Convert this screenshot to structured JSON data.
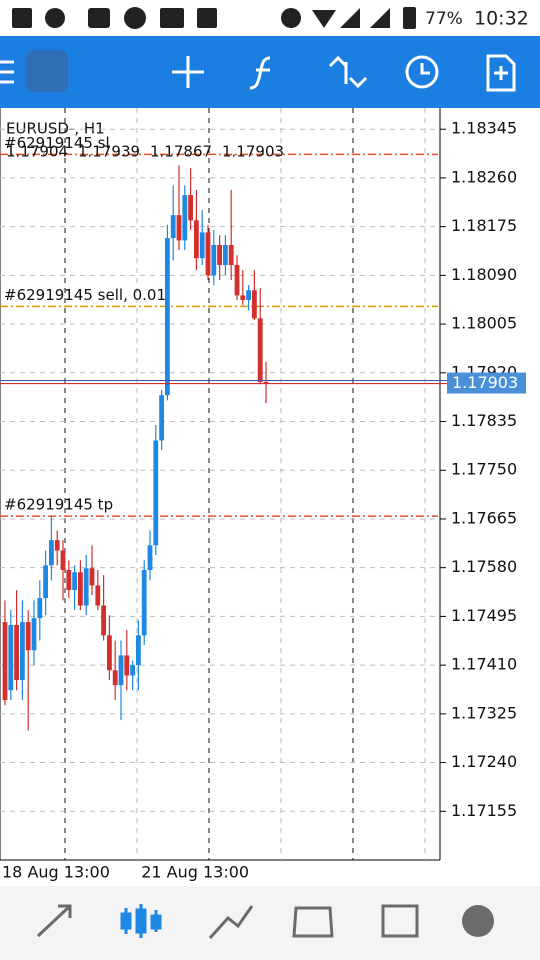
{
  "status_bar": {
    "battery": "77%",
    "time": "10:32"
  },
  "chart_data": {
    "type": "candlestick",
    "title": "EURUSD-, H1",
    "categories": [
      "18 Aug 13:00",
      null,
      null,
      null,
      null,
      null,
      null,
      null,
      null,
      null,
      null,
      null,
      null,
      null,
      null,
      null,
      null,
      null,
      null,
      null,
      null,
      null,
      null,
      null,
      "21 Aug 13:00",
      null,
      null,
      null,
      null,
      null,
      null,
      null,
      null,
      null,
      null,
      null,
      null,
      null,
      null,
      null,
      null,
      null,
      null,
      null,
      null,
      null
    ],
    "open": [
      1.17485,
      1.17366,
      1.1748,
      1.17384,
      1.17485,
      1.17436,
      1.17492,
      1.17527,
      1.17584,
      1.17628,
      1.1761,
      1.17576,
      1.17541,
      1.17572,
      1.17514,
      1.17579,
      1.17549,
      1.17514,
      1.17462,
      1.17401,
      1.17375,
      1.17427,
      1.17392,
      1.1741,
      1.17462,
      1.17576,
      1.17619,
      1.17802,
      1.17881,
      1.18155,
      1.18195,
      1.18151,
      1.1823,
      1.18186,
      1.1812,
      1.18165,
      1.1809,
      1.18143,
      1.18108,
      1.18143,
      1.18108,
      1.18055,
      1.18047,
      1.18064,
      1.18015,
      1.17904
    ],
    "high": [
      1.17523,
      1.17506,
      1.17541,
      1.17523,
      1.17506,
      1.17523,
      1.17558,
      1.1761,
      1.17671,
      1.17645,
      1.17628,
      1.17593,
      1.17584,
      1.17593,
      1.17602,
      1.17619,
      1.17576,
      1.17567,
      1.17497,
      1.17453,
      1.17453,
      1.17471,
      1.17418,
      1.17488,
      1.17593,
      1.17645,
      1.17829,
      1.1789,
      1.18178,
      1.18247,
      1.18282,
      1.18247,
      1.18277,
      1.18239,
      1.18204,
      1.18178,
      1.18169,
      1.1816,
      1.1816,
      1.18239,
      1.18125,
      1.18099,
      1.18073,
      1.18099,
      1.18068,
      1.17939
    ],
    "low": [
      1.1734,
      1.17349,
      1.17366,
      1.17349,
      1.17296,
      1.1741,
      1.17453,
      1.17497,
      1.17558,
      1.17584,
      1.17523,
      1.17527,
      1.17506,
      1.17506,
      1.17497,
      1.17532,
      1.17506,
      1.17453,
      1.17384,
      1.17349,
      1.17314,
      1.17366,
      1.17366,
      1.17366,
      1.17445,
      1.17558,
      1.17602,
      1.17785,
      1.17872,
      1.18116,
      1.18134,
      1.18134,
      1.18169,
      1.18099,
      1.18108,
      1.18082,
      1.18073,
      1.18082,
      1.1809,
      1.18082,
      1.18047,
      1.18038,
      1.18029,
      1.18012,
      1.179,
      1.17867
    ],
    "close": [
      1.17349,
      1.1748,
      1.17384,
      1.17485,
      1.17436,
      1.17492,
      1.17527,
      1.17584,
      1.17628,
      1.1761,
      1.17576,
      1.17541,
      1.17572,
      1.17514,
      1.17579,
      1.17549,
      1.17514,
      1.17462,
      1.17401,
      1.17375,
      1.17427,
      1.17392,
      1.1741,
      1.17462,
      1.17576,
      1.17619,
      1.17802,
      1.17881,
      1.18155,
      1.18195,
      1.18151,
      1.1823,
      1.18186,
      1.1812,
      1.18165,
      1.1809,
      1.18143,
      1.18108,
      1.18143,
      1.18108,
      1.18055,
      1.18047,
      1.18064,
      1.18015,
      1.17904,
      1.17903
    ],
    "up_color": "#1e88e5",
    "down_color": "#d32f2f",
    "current_price": 1.17903,
    "current_price_color": "#4a90d9",
    "levels": [
      {
        "label": "#62919145 sl",
        "value": 1.18301,
        "color": "#e0522b"
      },
      {
        "label": "#62919145 sell, 0.01",
        "value": 1.18036,
        "color": "#d49a00"
      },
      {
        "label": "#62919145 tp",
        "value": 1.1767,
        "color": "#e0522b"
      }
    ],
    "ylim": [
      1.1707,
      1.18382
    ],
    "yticks": [
      1.18345,
      {
        "value": 1.1826,
        "label": "1.18260"
      },
      1.18175,
      {
        "value": 1.1809,
        "label": "1.18090"
      },
      1.18005,
      {
        "value": 1.1792,
        "label": "1.17920"
      },
      1.17835,
      {
        "value": 1.1775,
        "label": "1.17750"
      },
      1.17665,
      {
        "value": 1.1758,
        "label": "1.17580"
      },
      1.17495,
      {
        "value": 1.1741,
        "label": "1.17410"
      },
      1.17325,
      {
        "value": 1.1724,
        "label": "1.17240"
      },
      1.17155
    ],
    "grid": true
  }
}
